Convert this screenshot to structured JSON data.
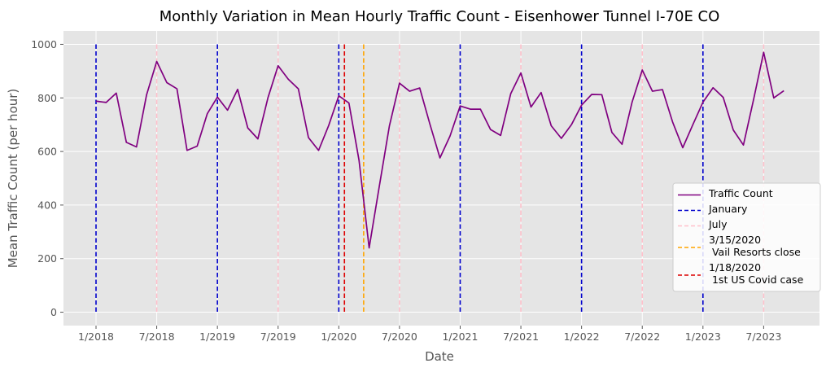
{
  "chart_data": {
    "type": "line",
    "title": "Monthly Variation in Mean Hourly Traffic Count - Eisenhower Tunnel I-70E CO",
    "xlabel": "Date",
    "ylabel": "Mean Traffic Count (per hour)",
    "ylim": [
      -50,
      1050
    ],
    "yticks": [
      0,
      200,
      400,
      600,
      800,
      1000
    ],
    "xticks": [
      "1/2018",
      "7/2018",
      "1/2019",
      "7/2019",
      "1/2020",
      "7/2020",
      "1/2021",
      "7/2021",
      "1/2022",
      "7/2022",
      "1/2023",
      "7/2023"
    ],
    "grid": true,
    "legend_position": "lower right",
    "series": [
      {
        "name": "Traffic Count",
        "color": "#800080",
        "x": [
          "2018-01",
          "2018-02",
          "2018-03",
          "2018-04",
          "2018-05",
          "2018-06",
          "2018-07",
          "2018-08",
          "2018-09",
          "2018-10",
          "2018-11",
          "2018-12",
          "2019-01",
          "2019-02",
          "2019-03",
          "2019-04",
          "2019-05",
          "2019-06",
          "2019-07",
          "2019-08",
          "2019-09",
          "2019-10",
          "2019-11",
          "2019-12",
          "2020-01",
          "2020-02",
          "2020-03",
          "2020-04",
          "2020-05",
          "2020-06",
          "2020-07",
          "2020-08",
          "2020-09",
          "2020-10",
          "2020-11",
          "2020-12",
          "2021-01",
          "2021-02",
          "2021-03",
          "2021-04",
          "2021-05",
          "2021-06",
          "2021-07",
          "2021-08",
          "2021-09",
          "2021-10",
          "2021-11",
          "2021-12",
          "2022-01",
          "2022-02",
          "2022-03",
          "2022-04",
          "2022-05",
          "2022-06",
          "2022-07",
          "2022-08",
          "2022-09",
          "2022-10",
          "2022-11",
          "2022-12",
          "2023-01",
          "2023-02",
          "2023-03",
          "2023-04",
          "2023-05",
          "2023-06",
          "2023-07",
          "2023-08",
          "2023-09"
        ],
        "values": [
          788,
          783,
          818,
          634,
          617,
          812,
          936,
          857,
          834,
          604,
          620,
          741,
          803,
          754,
          832,
          688,
          647,
          801,
          920,
          870,
          834,
          652,
          604,
          697,
          808,
          781,
          567,
          240,
          469,
          695,
          855,
          825,
          837,
          703,
          576,
          658,
          770,
          758,
          758,
          682,
          660,
          816,
          893,
          766,
          820,
          696,
          649,
          700,
          773,
          813,
          812,
          671,
          627,
          785,
          904,
          825,
          831,
          710,
          614,
          700,
          784,
          838,
          802,
          680,
          624,
          793,
          970,
          800,
          827
        ]
      }
    ],
    "reference_lines": [
      {
        "label": "January",
        "color": "#0000cc",
        "dates": [
          "2018-01",
          "2019-01",
          "2020-01",
          "2021-01",
          "2022-01",
          "2023-01"
        ]
      },
      {
        "label": "July",
        "color": "#ffc0cb",
        "dates": [
          "2018-07",
          "2019-07",
          "2020-07",
          "2021-07",
          "2022-07",
          "2023-07"
        ]
      },
      {
        "label": "3/15/2020\n Vail Resorts close",
        "color": "#ffa500",
        "dates": [
          "2020-03-15"
        ]
      },
      {
        "label": "1/18/2020\n 1st US Covid case",
        "color": "#dd0000",
        "dates": [
          "2020-01-18"
        ]
      }
    ]
  }
}
